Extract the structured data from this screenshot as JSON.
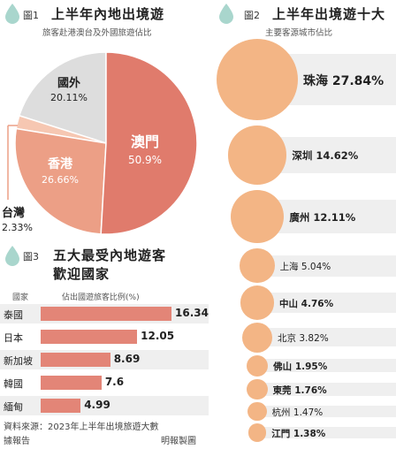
{
  "colors": {
    "salmon_dark": "#e07b6c",
    "salmon_mid": "#ec9f86",
    "salmon_light": "#f6c7b2",
    "gray": "#dddddd",
    "orange": "#f3b585",
    "teal": "#a9d6cd",
    "bar": "#e38577",
    "row_band": "#efefef"
  },
  "figure1": {
    "num": "圖1",
    "title": "上半年內地出境遊",
    "subtitle": "旅客赴港澳台及外國旅遊佔比"
  },
  "figure2": {
    "num": "圖2",
    "title": "上半年出境遊十大",
    "subtitle": "主要客源城市佔比"
  },
  "figure3": {
    "num": "圖3",
    "title_line1": "五大最受內地遊客",
    "title_line2": "歡迎國家",
    "col_country": "國家",
    "col_share": "佔出國遊旅客比例(%)"
  },
  "footer": {
    "source_line1": "資料來源：2023年上半年出境旅遊大數",
    "source_line2": "據報告",
    "credit": "明報製圖"
  },
  "chart_data": [
    {
      "type": "pie",
      "title": "上半年內地出境遊",
      "subtitle": "旅客赴港澳台及外國旅遊佔比",
      "slices": [
        {
          "label": "澳門",
          "value": 50.9,
          "value_label": "50.9%",
          "color": "#e07b6c"
        },
        {
          "label": "香港",
          "value": 26.66,
          "value_label": "26.66%",
          "color": "#ec9f86"
        },
        {
          "label": "台灣",
          "value": 2.33,
          "value_label": "2.33%",
          "color": "#f6c7b2"
        },
        {
          "label": "國外",
          "value": 20.11,
          "value_label": "20.11%",
          "color": "#dddddd"
        }
      ]
    },
    {
      "type": "bar",
      "title": "上半年出境遊十大",
      "subtitle": "主要客源城市佔比",
      "categories": [
        "珠海",
        "深圳",
        "廣州",
        "上海",
        "中山",
        "北京",
        "佛山",
        "東莞",
        "杭州",
        "江門"
      ],
      "values": [
        27.84,
        14.62,
        12.11,
        5.04,
        4.76,
        3.82,
        1.95,
        1.76,
        1.47,
        1.38
      ],
      "value_labels": [
        "27.84%",
        "14.62%",
        "12.11%",
        "5.04%",
        "4.76%",
        "3.82%",
        "1.95%",
        "1.76%",
        "1.47%",
        "1.38%"
      ]
    },
    {
      "type": "bar",
      "title": "五大最受內地遊客歡迎國家",
      "xlabel": "國家",
      "ylabel": "佔出國遊旅客比例(%)",
      "categories": [
        "泰國",
        "日本",
        "新加坡",
        "韓國",
        "緬甸"
      ],
      "values": [
        16.34,
        12.05,
        8.69,
        7.6,
        4.99
      ],
      "value_labels": [
        "16.34",
        "12.05",
        "8.69",
        "7.6",
        "4.99"
      ]
    }
  ]
}
